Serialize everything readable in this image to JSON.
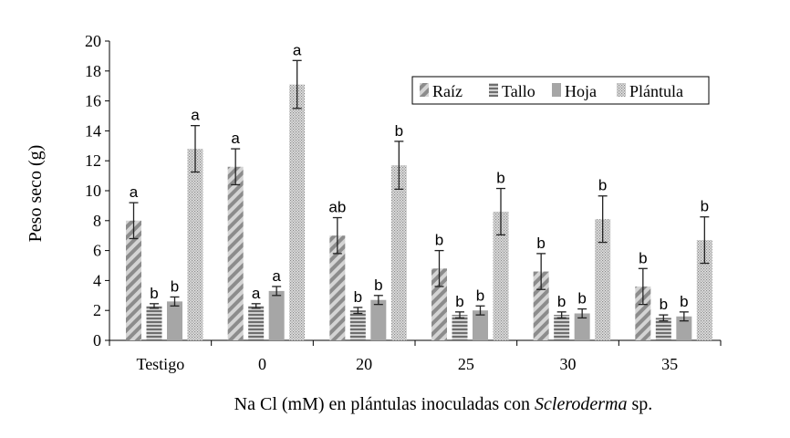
{
  "chart_data": {
    "type": "bar",
    "ylabel": "Peso seco (g)",
    "xlabel_prefix": "Na Cl (mM) en plántulas inoculadas con ",
    "xlabel_italic": "Scleroderma",
    "xlabel_suffix": " sp.",
    "ylim": [
      0,
      20
    ],
    "yticks": [
      "0",
      "2",
      "4",
      "6",
      "8",
      "10",
      "12",
      "14",
      "16",
      "18",
      "20"
    ],
    "categories": [
      "Testigo",
      "0",
      "20",
      "25",
      "30",
      "35"
    ],
    "legend_position": "top-right",
    "series": [
      {
        "name": "Raíz",
        "pattern": "diagonal",
        "values": [
          8.0,
          11.6,
          7.0,
          4.8,
          4.6,
          3.6
        ],
        "errors": [
          1.2,
          1.2,
          1.2,
          1.2,
          1.2,
          1.2
        ],
        "letters": [
          "a",
          "a",
          "ab",
          "b",
          "b",
          "b"
        ]
      },
      {
        "name": "Tallo",
        "pattern": "horizontal",
        "values": [
          2.3,
          2.3,
          2.0,
          1.7,
          1.7,
          1.5
        ],
        "errors": [
          0.15,
          0.15,
          0.2,
          0.2,
          0.2,
          0.2
        ],
        "letters": [
          "b",
          "a",
          "b",
          "b",
          "b",
          "b"
        ]
      },
      {
        "name": "Hoja",
        "pattern": "solid",
        "values": [
          2.6,
          3.3,
          2.7,
          2.0,
          1.8,
          1.6
        ],
        "errors": [
          0.3,
          0.3,
          0.3,
          0.3,
          0.3,
          0.3
        ],
        "letters": [
          "b",
          "a",
          "b",
          "b",
          "b",
          "b"
        ]
      },
      {
        "name": "Plántula",
        "pattern": "dotted",
        "values": [
          12.8,
          17.1,
          11.7,
          8.6,
          8.1,
          6.7
        ],
        "errors": [
          1.55,
          1.6,
          1.6,
          1.55,
          1.55,
          1.55
        ],
        "letters": [
          "a",
          "a",
          "b",
          "b",
          "b",
          "b"
        ]
      }
    ]
  }
}
